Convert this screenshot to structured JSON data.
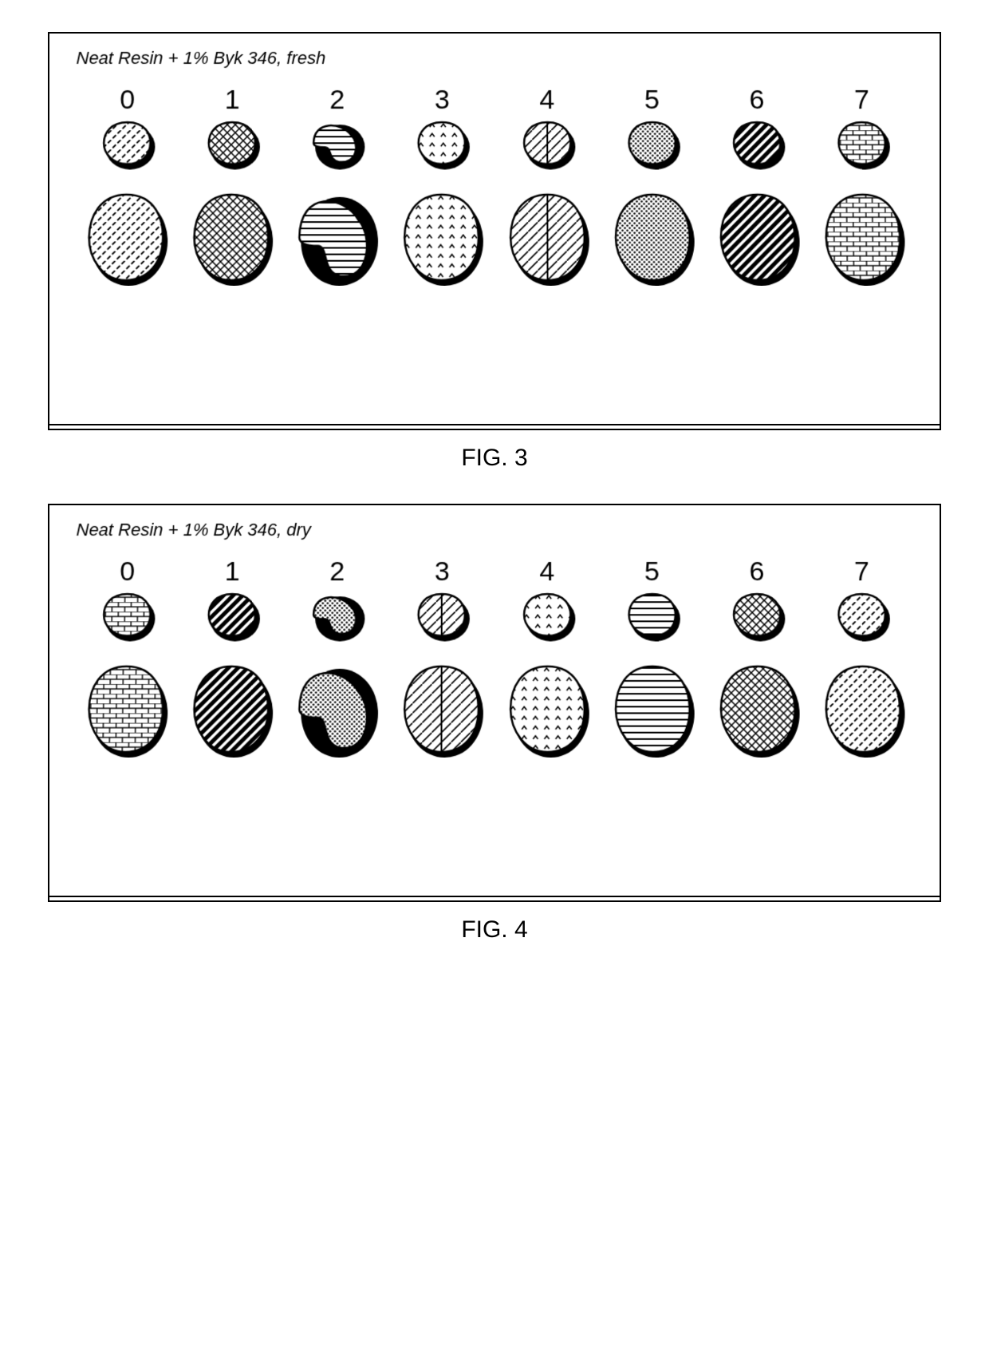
{
  "figures": [
    {
      "caption": "FIG. 3",
      "title": "Neat Resin + 1% Byk 346, fresh",
      "columns": [
        "0",
        "1",
        "2",
        "3",
        "4",
        "5",
        "6",
        "7"
      ],
      "small_w": 62,
      "small_h": 56,
      "big_w": 96,
      "big_h": 110,
      "stroke": "#000000",
      "bg": "#ffffff",
      "title_fontsize": 22,
      "col_fontsize": 34,
      "caption_fontsize": 30,
      "patterns": [
        "dashTicks",
        "crosshatch",
        "hstripes",
        "carets",
        "diag-split",
        "dense-dots",
        "thickdiag",
        "brick"
      ]
    },
    {
      "caption": "FIG. 4",
      "title": "Neat Resin + 1% Byk 346, dry",
      "columns": [
        "0",
        "1",
        "2",
        "3",
        "4",
        "5",
        "6",
        "7"
      ],
      "small_w": 62,
      "small_h": 56,
      "big_w": 96,
      "big_h": 110,
      "stroke": "#000000",
      "bg": "#ffffff",
      "title_fontsize": 22,
      "col_fontsize": 34,
      "caption_fontsize": 30,
      "patterns": [
        "brick",
        "thickdiag",
        "dense-dots",
        "diag-split",
        "carets",
        "hstripes",
        "crosshatch",
        "dashTicks"
      ]
    }
  ],
  "pattern_defs": {
    "dashTicks": {
      "type": "dash",
      "color": "#000"
    },
    "crosshatch": {
      "type": "cross",
      "color": "#000"
    },
    "hstripes": {
      "type": "hlines",
      "color": "#000"
    },
    "carets": {
      "type": "caret",
      "color": "#000"
    },
    "diag-split": {
      "type": "diag-split",
      "color": "#000"
    },
    "dense-dots": {
      "type": "dots",
      "color": "#000"
    },
    "thickdiag": {
      "type": "thickdiag",
      "color": "#000"
    },
    "brick": {
      "type": "brick",
      "color": "#000"
    }
  }
}
